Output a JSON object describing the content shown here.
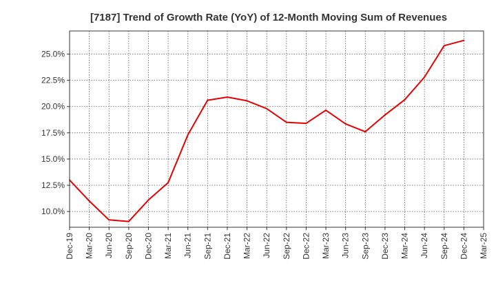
{
  "chart_data": {
    "type": "line",
    "title": "[7187]  Trend of Growth Rate (YoY) of 12-Month Moving Sum of Revenues",
    "xlabel": "",
    "ylabel": "",
    "categories": [
      "Dec-19",
      "Mar-20",
      "Jun-20",
      "Sep-20",
      "Dec-20",
      "Mar-21",
      "Jun-21",
      "Sep-21",
      "Dec-21",
      "Mar-22",
      "Jun-22",
      "Sep-22",
      "Dec-22",
      "Mar-23",
      "Jun-23",
      "Sep-23",
      "Dec-23",
      "Mar-24",
      "Jun-24",
      "Sep-24",
      "Dec-24",
      "Mar-25"
    ],
    "series": [
      {
        "color": "#e60000",
        "values": [
          13.0,
          11.0,
          9.2,
          9.05,
          11.1,
          12.75,
          17.3,
          20.6,
          20.9,
          20.55,
          19.8,
          18.5,
          18.4,
          19.65,
          18.35,
          17.6,
          19.2,
          20.65,
          22.8,
          25.8,
          26.3,
          null
        ]
      }
    ],
    "yticks": [
      "10.0%",
      "12.5%",
      "15.0%",
      "17.5%",
      "20.0%",
      "22.5%",
      "25.0%"
    ],
    "ytick_values": [
      10.0,
      12.5,
      15.0,
      17.5,
      20.0,
      22.5,
      25.0
    ],
    "ylim": [
      8.5,
      27.2
    ],
    "grid": true,
    "grid_style": "dotted",
    "line_color": "#e60000"
  }
}
